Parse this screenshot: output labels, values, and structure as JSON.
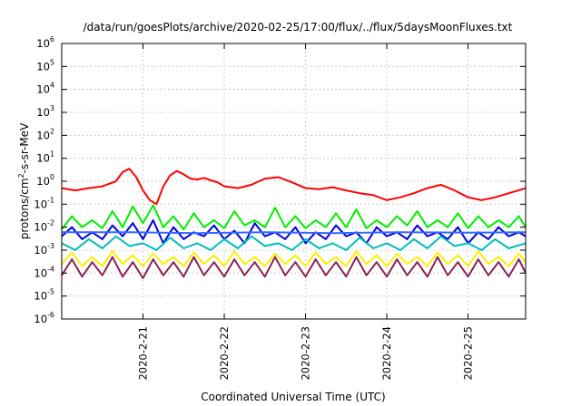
{
  "chart_data": {
    "type": "line",
    "title": "/data/run/goesPlots/archive/2020-02-25/17:00/flux/../flux/5daysMoonFluxes.txt",
    "xlabel": "Coordinated Universal Time (UTC)",
    "ylabel": {
      "base": "protons/cm",
      "exp": "2",
      "rest": "-s-sr-MeV"
    },
    "y_scale": "log",
    "ylim": [
      1e-06,
      1000000.0
    ],
    "xlim": [
      "2020-02-20 00:00",
      "2020-02-25 17:00"
    ],
    "grid": true,
    "legend": "none",
    "x_ticks": [
      "2020-2-21",
      "2020-2-22",
      "2020-2-23",
      "2020-2-24",
      "2020-2-25"
    ],
    "y_ticks": [
      {
        "base": "10",
        "exp": "-6"
      },
      {
        "base": "10",
        "exp": "-5"
      },
      {
        "base": "10",
        "exp": "-4"
      },
      {
        "base": "10",
        "exp": "-3"
      },
      {
        "base": "10",
        "exp": "-2"
      },
      {
        "base": "10",
        "exp": "-1"
      },
      {
        "base": "10",
        "exp": "0"
      },
      {
        "base": "10",
        "exp": "1"
      },
      {
        "base": "10",
        "exp": "2"
      },
      {
        "base": "10",
        "exp": "3"
      },
      {
        "base": "10",
        "exp": "4"
      },
      {
        "base": "10",
        "exp": "5"
      },
      {
        "base": "10",
        "exp": "6"
      }
    ],
    "series": [
      {
        "color": "#ff0000",
        "x_hours": [
          0,
          4,
          8,
          12,
          16,
          18,
          20,
          22,
          24,
          26,
          28,
          30,
          32,
          34,
          36,
          38,
          40,
          42,
          44,
          46,
          48,
          52,
          56,
          60,
          64,
          68,
          72,
          76,
          80,
          84,
          88,
          92,
          96,
          100,
          104,
          108,
          112,
          116,
          120,
          124,
          128,
          132,
          136,
          137
        ],
        "y": [
          0.5,
          0.4,
          0.5,
          0.6,
          1.0,
          2.5,
          3.5,
          1.5,
          0.4,
          0.15,
          0.1,
          0.6,
          1.8,
          2.8,
          2.0,
          1.3,
          1.2,
          1.4,
          1.1,
          0.9,
          0.6,
          0.5,
          0.7,
          1.3,
          1.5,
          0.9,
          0.5,
          0.45,
          0.55,
          0.4,
          0.3,
          0.25,
          0.15,
          0.2,
          0.3,
          0.5,
          0.7,
          0.4,
          0.2,
          0.15,
          0.2,
          0.3,
          0.45,
          0.5
        ]
      },
      {
        "color": "#00ee00",
        "x_hours": [
          0,
          3,
          6,
          9,
          12,
          15,
          18,
          21,
          24,
          27,
          30,
          33,
          36,
          39,
          42,
          45,
          48,
          51,
          54,
          57,
          60,
          63,
          66,
          69,
          72,
          75,
          78,
          81,
          84,
          87,
          90,
          93,
          96,
          99,
          102,
          105,
          108,
          111,
          114,
          117,
          120,
          123,
          126,
          129,
          132,
          135,
          137
        ],
        "y": [
          0.008,
          0.03,
          0.01,
          0.02,
          0.009,
          0.05,
          0.01,
          0.08,
          0.015,
          0.09,
          0.01,
          0.03,
          0.008,
          0.04,
          0.01,
          0.02,
          0.009,
          0.05,
          0.012,
          0.02,
          0.01,
          0.07,
          0.01,
          0.03,
          0.009,
          0.02,
          0.01,
          0.04,
          0.01,
          0.06,
          0.009,
          0.02,
          0.01,
          0.03,
          0.012,
          0.05,
          0.01,
          0.02,
          0.01,
          0.04,
          0.009,
          0.03,
          0.01,
          0.02,
          0.01,
          0.03,
          0.01
        ]
      },
      {
        "color": "#0000dd",
        "x_hours": [
          0,
          3,
          6,
          9,
          12,
          15,
          18,
          21,
          24,
          27,
          30,
          33,
          36,
          39,
          42,
          45,
          48,
          51,
          54,
          57,
          60,
          63,
          66,
          69,
          72,
          75,
          78,
          81,
          84,
          87,
          90,
          93,
          96,
          99,
          102,
          105,
          108,
          111,
          114,
          117,
          120,
          123,
          126,
          129,
          132,
          135,
          137
        ],
        "y": [
          0.004,
          0.01,
          0.003,
          0.006,
          0.003,
          0.012,
          0.004,
          0.015,
          0.003,
          0.02,
          0.002,
          0.01,
          0.003,
          0.006,
          0.004,
          0.012,
          0.003,
          0.007,
          0.002,
          0.015,
          0.004,
          0.006,
          0.003,
          0.01,
          0.002,
          0.006,
          0.003,
          0.012,
          0.004,
          0.006,
          0.002,
          0.01,
          0.004,
          0.006,
          0.003,
          0.012,
          0.004,
          0.006,
          0.003,
          0.01,
          0.002,
          0.006,
          0.003,
          0.01,
          0.004,
          0.006,
          0.004
        ]
      },
      {
        "color": "#3366ff",
        "x_hours": [
          0,
          20,
          40,
          60,
          80,
          100,
          120,
          137
        ],
        "y": [
          0.006,
          0.006,
          0.0055,
          0.006,
          0.0055,
          0.006,
          0.0058,
          0.006
        ]
      },
      {
        "color": "#00bbbb",
        "x_hours": [
          0,
          4,
          8,
          12,
          16,
          20,
          24,
          28,
          32,
          36,
          40,
          44,
          48,
          52,
          56,
          60,
          64,
          68,
          72,
          76,
          80,
          84,
          88,
          92,
          96,
          100,
          104,
          108,
          112,
          116,
          120,
          124,
          128,
          132,
          137
        ],
        "y": [
          0.002,
          0.001,
          0.003,
          0.0012,
          0.004,
          0.0015,
          0.002,
          0.001,
          0.0035,
          0.0012,
          0.002,
          0.001,
          0.003,
          0.0012,
          0.004,
          0.0015,
          0.002,
          0.001,
          0.003,
          0.0012,
          0.002,
          0.001,
          0.0035,
          0.0012,
          0.002,
          0.001,
          0.003,
          0.0012,
          0.004,
          0.0015,
          0.002,
          0.001,
          0.003,
          0.0012,
          0.002
        ]
      },
      {
        "color": "#ffee00",
        "x_hours": [
          0,
          3,
          6,
          9,
          12,
          15,
          18,
          21,
          24,
          27,
          30,
          33,
          36,
          39,
          42,
          45,
          48,
          51,
          54,
          57,
          60,
          63,
          66,
          69,
          72,
          75,
          78,
          81,
          84,
          87,
          90,
          93,
          96,
          99,
          102,
          105,
          108,
          111,
          114,
          117,
          120,
          123,
          126,
          129,
          132,
          135,
          137
        ],
        "y": [
          0.00025,
          0.0008,
          0.0002,
          0.0005,
          0.0002,
          0.0009,
          0.00025,
          0.0006,
          0.0002,
          0.0007,
          0.00025,
          0.0005,
          0.0002,
          0.0008,
          0.00025,
          0.0006,
          0.0002,
          0.0009,
          0.00025,
          0.0005,
          0.0002,
          0.0007,
          0.00025,
          0.0006,
          0.0002,
          0.0008,
          0.00025,
          0.0005,
          0.0002,
          0.0009,
          0.00025,
          0.0006,
          0.0002,
          0.0007,
          0.00025,
          0.0005,
          0.0002,
          0.0008,
          0.00025,
          0.0006,
          0.0002,
          0.0009,
          0.00025,
          0.0005,
          0.0002,
          0.0007,
          0.0003
        ]
      },
      {
        "color": "#882255",
        "x_hours": [
          0,
          3,
          6,
          9,
          12,
          15,
          18,
          21,
          24,
          27,
          30,
          33,
          36,
          39,
          42,
          45,
          48,
          51,
          54,
          57,
          60,
          63,
          66,
          69,
          72,
          75,
          78,
          81,
          84,
          87,
          90,
          93,
          96,
          99,
          102,
          105,
          108,
          111,
          114,
          117,
          120,
          123,
          126,
          129,
          132,
          135,
          137
        ],
        "y": [
          8e-05,
          0.0004,
          7e-05,
          0.0003,
          8e-05,
          0.0005,
          7e-05,
          0.0003,
          6e-05,
          0.0004,
          8e-05,
          0.0003,
          7e-05,
          0.0005,
          8e-05,
          0.0003,
          7e-05,
          0.0004,
          8e-05,
          0.0003,
          7e-05,
          0.0005,
          8e-05,
          0.0003,
          7e-05,
          0.0004,
          8e-05,
          0.0003,
          7e-05,
          0.0005,
          8e-05,
          0.0003,
          7e-05,
          0.0004,
          8e-05,
          0.0003,
          7e-05,
          0.0005,
          8e-05,
          0.0003,
          7e-05,
          0.0004,
          8e-05,
          0.0003,
          7e-05,
          0.0004,
          0.0001
        ]
      }
    ]
  }
}
